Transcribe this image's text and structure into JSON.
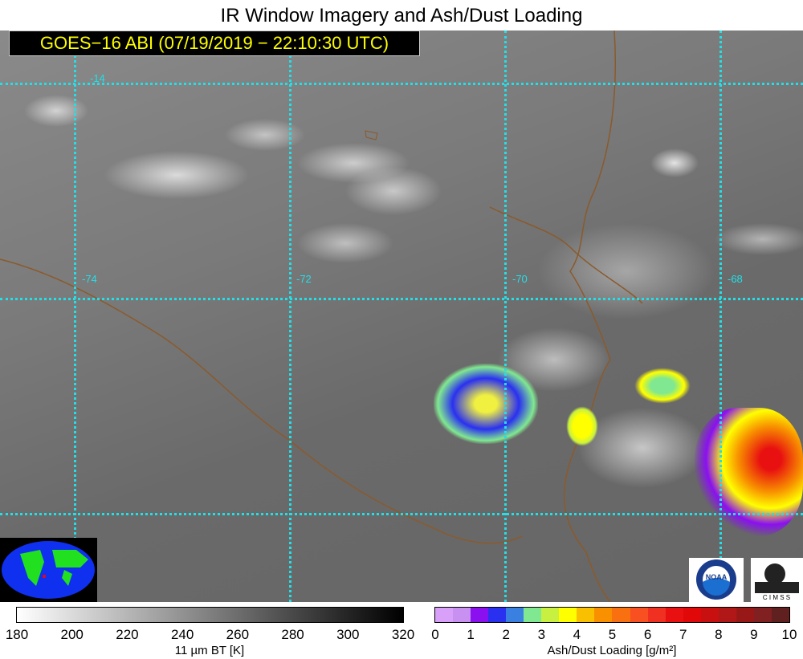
{
  "title": "IR Window Imagery and Ash/Dust Loading",
  "subtitle": "GOES−16 ABI (07/19/2019 − 22:10:30 UTC)",
  "grid_labels": {
    "lat": [
      "-14"
    ],
    "lon": [
      "-74",
      "-72",
      "-70",
      "-68"
    ]
  },
  "colorbar_bt": {
    "ticks": [
      "180",
      "200",
      "220",
      "240",
      "260",
      "280",
      "300",
      "320"
    ],
    "label": "11 µm BT [K]",
    "range": [
      180,
      320
    ]
  },
  "colorbar_ash": {
    "ticks": [
      "0",
      "1",
      "2",
      "3",
      "4",
      "5",
      "6",
      "7",
      "8",
      "9",
      "10"
    ],
    "label": "Ash/Dust Loading [g/m²]",
    "range": [
      0,
      10
    ],
    "colors": [
      "#d8a0f8",
      "#c890f0",
      "#8a10f0",
      "#2a30f0",
      "#3a80e0",
      "#80e890",
      "#c8f040",
      "#ffff00",
      "#f8c000",
      "#f89000",
      "#f87010",
      "#f85020",
      "#f03020",
      "#e81010",
      "#e00808",
      "#c81010",
      "#b01818",
      "#981818",
      "#802020",
      "#602020"
    ]
  },
  "logos": [
    "NOAA",
    "CIMSS"
  ]
}
